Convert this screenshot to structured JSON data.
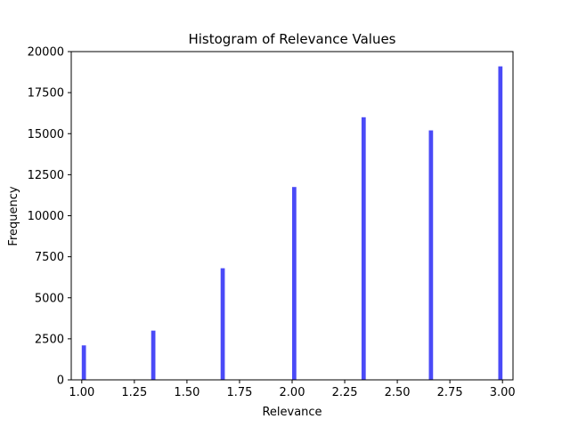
{
  "chart_data": {
    "type": "bar",
    "title": "Histogram of Relevance Values",
    "xlabel": "Relevance",
    "ylabel": "Frequency",
    "xlim": [
      0.95,
      3.05
    ],
    "ylim": [
      0,
      20000
    ],
    "xticks": [
      1.0,
      1.25,
      1.5,
      1.75,
      2.0,
      2.25,
      2.5,
      2.75,
      3.0
    ],
    "xtick_labels": [
      "1.00",
      "1.25",
      "1.50",
      "1.75",
      "2.00",
      "2.25",
      "2.50",
      "2.75",
      "3.00"
    ],
    "yticks": [
      0,
      2500,
      5000,
      7500,
      10000,
      12500,
      15000,
      17500,
      20000
    ],
    "ytick_labels": [
      "0",
      "2500",
      "5000",
      "7500",
      "10000",
      "12500",
      "15000",
      "17500",
      "20000"
    ],
    "bar_width": 0.02,
    "bars": [
      {
        "x": 1.01,
        "value": 2100
      },
      {
        "x": 1.34,
        "value": 3000
      },
      {
        "x": 1.67,
        "value": 6800
      },
      {
        "x": 2.01,
        "value": 11750
      },
      {
        "x": 2.34,
        "value": 16000
      },
      {
        "x": 2.66,
        "value": 15200
      },
      {
        "x": 2.99,
        "value": 19100
      }
    ],
    "bar_color": "#4a4af7",
    "grid": false,
    "legend": "none"
  }
}
